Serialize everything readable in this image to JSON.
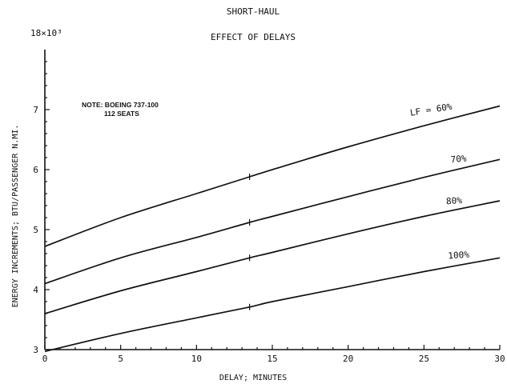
{
  "chart_data": {
    "type": "line",
    "title": "SHORT-HAUL",
    "subtitle": "EFFECT OF DELAYS",
    "xlabel": "DELAY; MINUTES",
    "ylabel": "ENERGY INCREMENTS; BTU/PASSENGER N.MI.",
    "y_multiplier_label": "18×10³",
    "note_line1": "NOTE: BOEING 737-100",
    "note_line2": "112 SEATS",
    "xlim": [
      0,
      30
    ],
    "ylim": [
      3,
      8
    ],
    "x_ticks": [
      0,
      5,
      10,
      15,
      20,
      25,
      30
    ],
    "y_ticks": [
      3,
      4,
      5,
      6,
      7
    ],
    "grid": false,
    "marker_x": 13.5,
    "series": [
      {
        "name": "LF = 60%",
        "label": "LF = 60%",
        "x": [
          0,
          5,
          10,
          13.5,
          15,
          20,
          25,
          30
        ],
        "values": [
          4.72,
          5.2,
          5.6,
          5.88,
          6.0,
          6.38,
          6.73,
          7.06
        ]
      },
      {
        "name": "70%",
        "label": "70%",
        "x": [
          0,
          5,
          10,
          13.5,
          15,
          20,
          25,
          30
        ],
        "values": [
          4.1,
          4.53,
          4.87,
          5.12,
          5.22,
          5.55,
          5.87,
          6.17
        ]
      },
      {
        "name": "80%",
        "label": "80%",
        "x": [
          0,
          5,
          10,
          13.5,
          15,
          20,
          25,
          30
        ],
        "values": [
          3.6,
          3.98,
          4.3,
          4.53,
          4.62,
          4.93,
          5.22,
          5.48
        ]
      },
      {
        "name": "100%",
        "label": "100%",
        "x": [
          0,
          5,
          10,
          13.5,
          15,
          20,
          25,
          30
        ],
        "values": [
          2.97,
          3.27,
          3.53,
          3.71,
          3.8,
          4.05,
          4.3,
          4.53
        ]
      }
    ]
  }
}
